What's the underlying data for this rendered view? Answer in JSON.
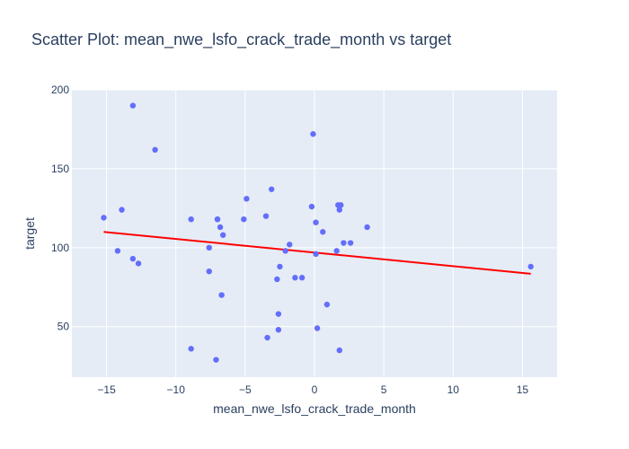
{
  "chart_data": {
    "type": "scatter",
    "title": "Scatter Plot: mean_nwe_lsfo_crack_trade_month vs target",
    "xlabel": "mean_nwe_lsfo_crack_trade_month",
    "ylabel": "target",
    "xlim": [
      -17.5,
      17.5
    ],
    "ylim": [
      18,
      200
    ],
    "xticks": [
      -15,
      -10,
      -5,
      0,
      5,
      10,
      15
    ],
    "yticks": [
      50,
      100,
      150,
      200
    ],
    "grid": true,
    "legend": "none",
    "colors": {
      "points": "#636efa",
      "trend": "#ff0000",
      "plot_bg": "#e5ecf6",
      "grid": "#ffffff",
      "text": "#2a3f5f"
    },
    "series": [
      {
        "type": "markers",
        "x": [
          -15.2,
          -14.2,
          -13.9,
          -13.1,
          -13.1,
          -12.7,
          -11.5,
          -8.9,
          -8.9,
          -7.6,
          -7.6,
          -7.1,
          -7.0,
          -7.0,
          -6.8,
          -6.7,
          -6.6,
          -5.1,
          -4.9,
          -3.5,
          -3.4,
          -3.1,
          -2.7,
          -2.6,
          -2.6,
          -2.5,
          -2.1,
          -1.8,
          -1.4,
          -0.9,
          -0.2,
          -0.1,
          0.1,
          0.1,
          0.2,
          0.6,
          0.9,
          1.6,
          1.7,
          1.8,
          1.8,
          1.9,
          2.1,
          2.6,
          3.8,
          15.6
        ],
        "y": [
          119,
          98,
          124,
          190,
          93,
          90,
          162,
          118,
          36,
          85,
          100,
          29,
          118,
          118,
          113,
          70,
          108,
          118,
          131,
          120,
          43,
          137,
          80,
          58,
          48,
          88,
          98,
          102,
          81,
          81,
          126,
          172,
          116,
          96,
          49,
          110,
          64,
          98,
          127,
          35,
          124,
          127,
          103,
          103,
          113,
          88
        ]
      },
      {
        "type": "line",
        "x": [
          -15.2,
          15.6
        ],
        "y": [
          110,
          83.5
        ]
      }
    ]
  }
}
